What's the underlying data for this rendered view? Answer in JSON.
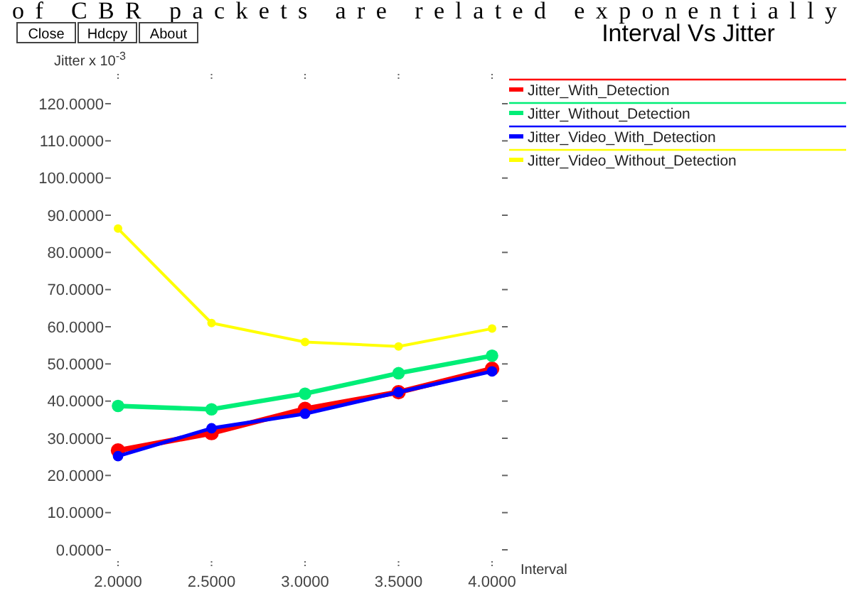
{
  "chart_data": {
    "type": "line",
    "title": "Interval Vs Jitter",
    "xlabel": "Interval",
    "ylabel": "Jitter x 10$^{-3}$",
    "annotations": [
      "of CBR packets are related exponentially",
      "Close",
      "Hdcpy",
      "About"
    ],
    "x": [
      2,
      2.5,
      3,
      3.5,
      4
    ],
    "xlim": [
      2,
      4
    ],
    "ylim": [
      0,
      120
    ],
    "xticks": [
      {
        "value": 2,
        "label": "2.0000"
      },
      {
        "value": 2.5,
        "label": "2.5000"
      },
      {
        "value": 3,
        "label": "3.0000"
      },
      {
        "value": 3.5,
        "label": "3.5000"
      },
      {
        "value": 4,
        "label": "4.0000"
      }
    ],
    "yticks": [
      {
        "value": 0,
        "label": "0.0000"
      },
      {
        "value": 10,
        "label": "10.0000"
      },
      {
        "value": 20,
        "label": "20.0000"
      },
      {
        "value": 30,
        "label": "30.0000"
      },
      {
        "value": 40,
        "label": "40.0000"
      },
      {
        "value": 50,
        "label": "50.0000"
      },
      {
        "value": 60,
        "label": "60.0000"
      },
      {
        "value": 70,
        "label": "70.0000"
      },
      {
        "value": 80,
        "label": "80.0000"
      },
      {
        "value": 90,
        "label": "90.0000"
      },
      {
        "value": 100,
        "label": "100.0000"
      },
      {
        "value": 110,
        "label": "110.0000"
      },
      {
        "value": 120,
        "label": "120.0000"
      }
    ],
    "marker": "circle",
    "legend": "right",
    "grid": false,
    "series": [
      {
        "name": "Jitter_With_Detection",
        "color": "#ff0000",
        "values": [
          26.7,
          31.4,
          37.9,
          42.4,
          48.7
        ]
      },
      {
        "name": "Jitter_Without_Detection",
        "color": "#00ee77",
        "values": [
          38.7,
          37.8,
          42.0,
          47.5,
          52.2
        ]
      },
      {
        "name": "Jitter_Video_With_Detection",
        "color": "#0000ff",
        "values": [
          25.2,
          32.7,
          36.6,
          42.4,
          48.0
        ]
      },
      {
        "name": "Jitter_Video_Without_Detection",
        "color": "#ffff00",
        "values": [
          86.4,
          61.0,
          55.9,
          54.7,
          59.5
        ]
      }
    ]
  }
}
